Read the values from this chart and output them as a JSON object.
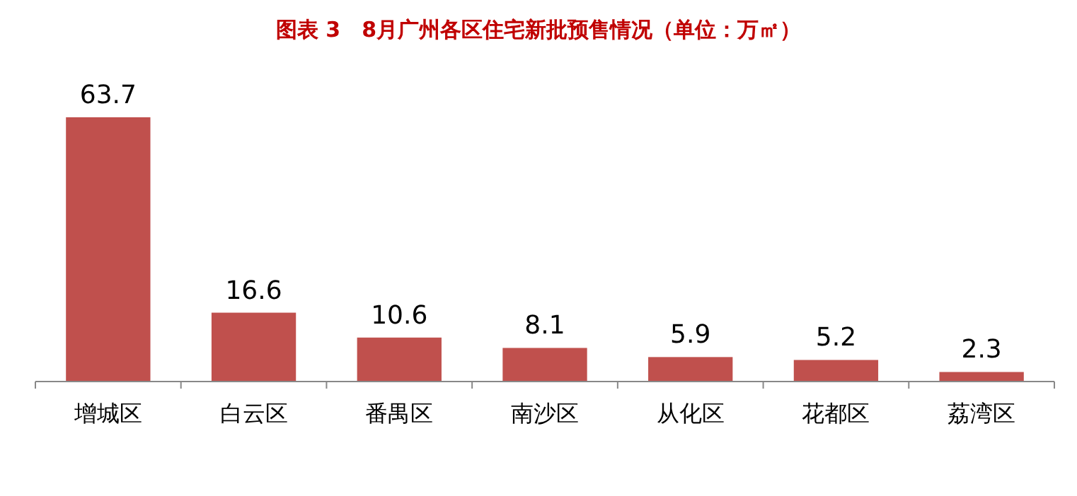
{
  "chart_data": {
    "type": "bar",
    "title": "图表 3　8月广州各区住宅新批预售情况（单位：万㎡）",
    "categories": [
      "增城区",
      "白云区",
      "番禺区",
      "南沙区",
      "从化区",
      "花都区",
      "荔湾区"
    ],
    "values": [
      63.7,
      16.6,
      10.6,
      8.1,
      5.9,
      5.2,
      2.3
    ],
    "color": "#c0504d",
    "data_labels": true
  }
}
